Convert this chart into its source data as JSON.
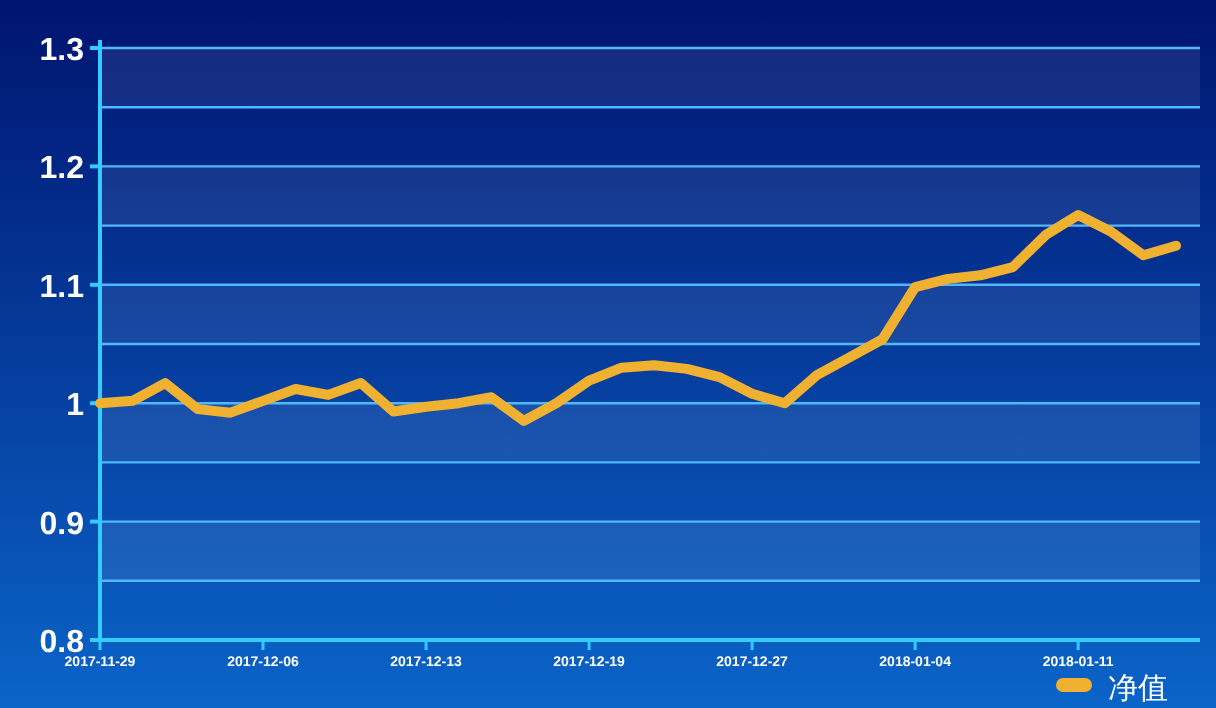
{
  "chart_data": {
    "type": "line",
    "categories": [
      "2017-11-29",
      null,
      null,
      null,
      null,
      "2017-12-06",
      null,
      null,
      null,
      null,
      "2017-12-13",
      null,
      null,
      null,
      null,
      "2017-12-19",
      null,
      null,
      null,
      null,
      "2017-12-27",
      null,
      null,
      null,
      null,
      "2018-01-04",
      null,
      null,
      null,
      null,
      "2018-01-11",
      null,
      null,
      null
    ],
    "series": [
      {
        "name": "净值",
        "color": "#f0b030",
        "values": [
          1.0,
          1.002,
          1.017,
          0.995,
          0.992,
          1.002,
          1.012,
          1.007,
          1.017,
          0.993,
          0.997,
          1.0,
          1.005,
          0.985,
          1.0,
          1.019,
          1.03,
          1.032,
          1.029,
          1.022,
          1.008,
          1.0,
          1.024,
          1.039,
          1.054,
          1.098,
          1.105,
          1.108,
          1.115,
          1.142,
          1.159,
          1.145,
          1.125,
          1.133
        ]
      }
    ],
    "ylim": [
      0.8,
      1.3
    ],
    "yticks": [
      0.8,
      {
        "value": 0.85,
        "label": null
      },
      0.9,
      {
        "value": 0.95,
        "label": null
      },
      1,
      {
        "value": 1.05,
        "label": null
      },
      1.1,
      {
        "value": 1.15,
        "label": null
      },
      1.2,
      {
        "value": 1.25,
        "label": null
      },
      1.3
    ],
    "grid": "y",
    "legend": "bottom right",
    "marker": "none",
    "line_style": "solid"
  }
}
